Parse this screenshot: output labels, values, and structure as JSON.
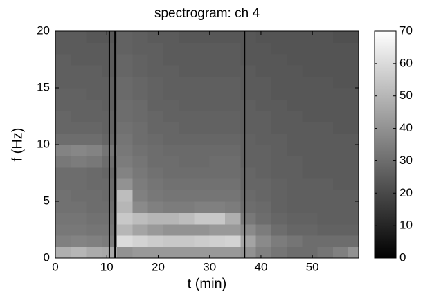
{
  "chart_data": {
    "type": "heatmap",
    "title": "spectrogram: ch 4",
    "xlabel": "t (min)",
    "ylabel": "f (Hz)",
    "xbins": [
      0,
      3,
      6,
      9,
      12,
      15,
      18,
      21,
      24,
      27,
      30,
      33,
      36,
      39,
      42,
      45,
      48,
      51,
      54,
      57,
      59
    ],
    "ybins": [
      0,
      1,
      2,
      3,
      4,
      5,
      6,
      7,
      8,
      9,
      10,
      11,
      12,
      13,
      14,
      15,
      16,
      17,
      18,
      19,
      20
    ],
    "z": [
      [
        48,
        50,
        47,
        46,
        40,
        42,
        42,
        42,
        42,
        42,
        42,
        42,
        40,
        35,
        32,
        30,
        30,
        32,
        35,
        40
      ],
      [
        35,
        36,
        35,
        34,
        60,
        58,
        56,
        55,
        55,
        56,
        57,
        58,
        45,
        38,
        34,
        32,
        30,
        30,
        30,
        30
      ],
      [
        33,
        33,
        32,
        32,
        50,
        45,
        42,
        40,
        40,
        40,
        42,
        42,
        38,
        34,
        30,
        28,
        28,
        27,
        27,
        27
      ],
      [
        32,
        32,
        31,
        31,
        55,
        52,
        50,
        50,
        52,
        55,
        55,
        48,
        33,
        30,
        28,
        27,
        27,
        26,
        26,
        26
      ],
      [
        31,
        31,
        30,
        30,
        50,
        38,
        35,
        34,
        34,
        35,
        35,
        34,
        30,
        29,
        27,
        26,
        26,
        26,
        26,
        26
      ],
      [
        31,
        30,
        30,
        29,
        52,
        35,
        33,
        32,
        32,
        32,
        32,
        32,
        29,
        28,
        27,
        26,
        26,
        26,
        26,
        26
      ],
      [
        30,
        30,
        29,
        29,
        40,
        34,
        32,
        31,
        31,
        31,
        31,
        31,
        28,
        28,
        27,
        26,
        26,
        26,
        25,
        25
      ],
      [
        30,
        30,
        29,
        28,
        36,
        33,
        31,
        30,
        30,
        30,
        30,
        30,
        28,
        27,
        26,
        26,
        25,
        25,
        25,
        25
      ],
      [
        33,
        34,
        33,
        30,
        34,
        32,
        30,
        30,
        29,
        29,
        30,
        30,
        27,
        27,
        26,
        26,
        25,
        25,
        25,
        25
      ],
      [
        36,
        37,
        36,
        32,
        33,
        31,
        30,
        29,
        29,
        29,
        29,
        29,
        27,
        27,
        26,
        25,
        25,
        25,
        25,
        25
      ],
      [
        30,
        30,
        30,
        28,
        32,
        30,
        29,
        28,
        28,
        28,
        28,
        28,
        27,
        26,
        26,
        25,
        25,
        25,
        25,
        25
      ],
      [
        28,
        28,
        28,
        27,
        31,
        30,
        28,
        28,
        27,
        27,
        27,
        27,
        26,
        26,
        25,
        25,
        25,
        25,
        24,
        24
      ],
      [
        28,
        27,
        27,
        27,
        30,
        29,
        28,
        27,
        27,
        27,
        27,
        27,
        26,
        26,
        25,
        25,
        24,
        24,
        24,
        24
      ],
      [
        27,
        27,
        27,
        26,
        30,
        29,
        27,
        27,
        26,
        26,
        26,
        26,
        26,
        25,
        25,
        24,
        24,
        24,
        24,
        24
      ],
      [
        27,
        27,
        26,
        26,
        29,
        28,
        27,
        26,
        26,
        26,
        26,
        26,
        25,
        25,
        24,
        24,
        24,
        24,
        24,
        24
      ],
      [
        26,
        26,
        26,
        26,
        29,
        28,
        27,
        26,
        26,
        26,
        26,
        26,
        25,
        25,
        24,
        24,
        24,
        24,
        23,
        23
      ],
      [
        26,
        26,
        26,
        25,
        28,
        27,
        26,
        26,
        25,
        25,
        25,
        25,
        25,
        24,
        24,
        24,
        23,
        23,
        23,
        23
      ],
      [
        26,
        25,
        25,
        25,
        28,
        27,
        26,
        25,
        25,
        25,
        25,
        25,
        24,
        24,
        24,
        23,
        23,
        23,
        23,
        23
      ],
      [
        25,
        25,
        25,
        25,
        27,
        26,
        26,
        25,
        25,
        25,
        25,
        25,
        24,
        24,
        23,
        23,
        23,
        23,
        23,
        23
      ],
      [
        25,
        25,
        24,
        24,
        27,
        26,
        25,
        25,
        24,
        24,
        24,
        24,
        24,
        23,
        23,
        23,
        23,
        23,
        22,
        22
      ]
    ],
    "vlines": [
      10.5,
      11.6,
      36.8
    ],
    "vline_color": "#000000",
    "xlim": [
      0,
      59
    ],
    "ylim": [
      0,
      20
    ],
    "xticks": [
      0,
      10,
      20,
      30,
      40,
      50
    ],
    "yticks": [
      0,
      5,
      10,
      15,
      20
    ],
    "colormap": "gray",
    "clim": [
      0,
      70
    ],
    "cticks": [
      0,
      10,
      20,
      30,
      40,
      50,
      60,
      70
    ]
  }
}
